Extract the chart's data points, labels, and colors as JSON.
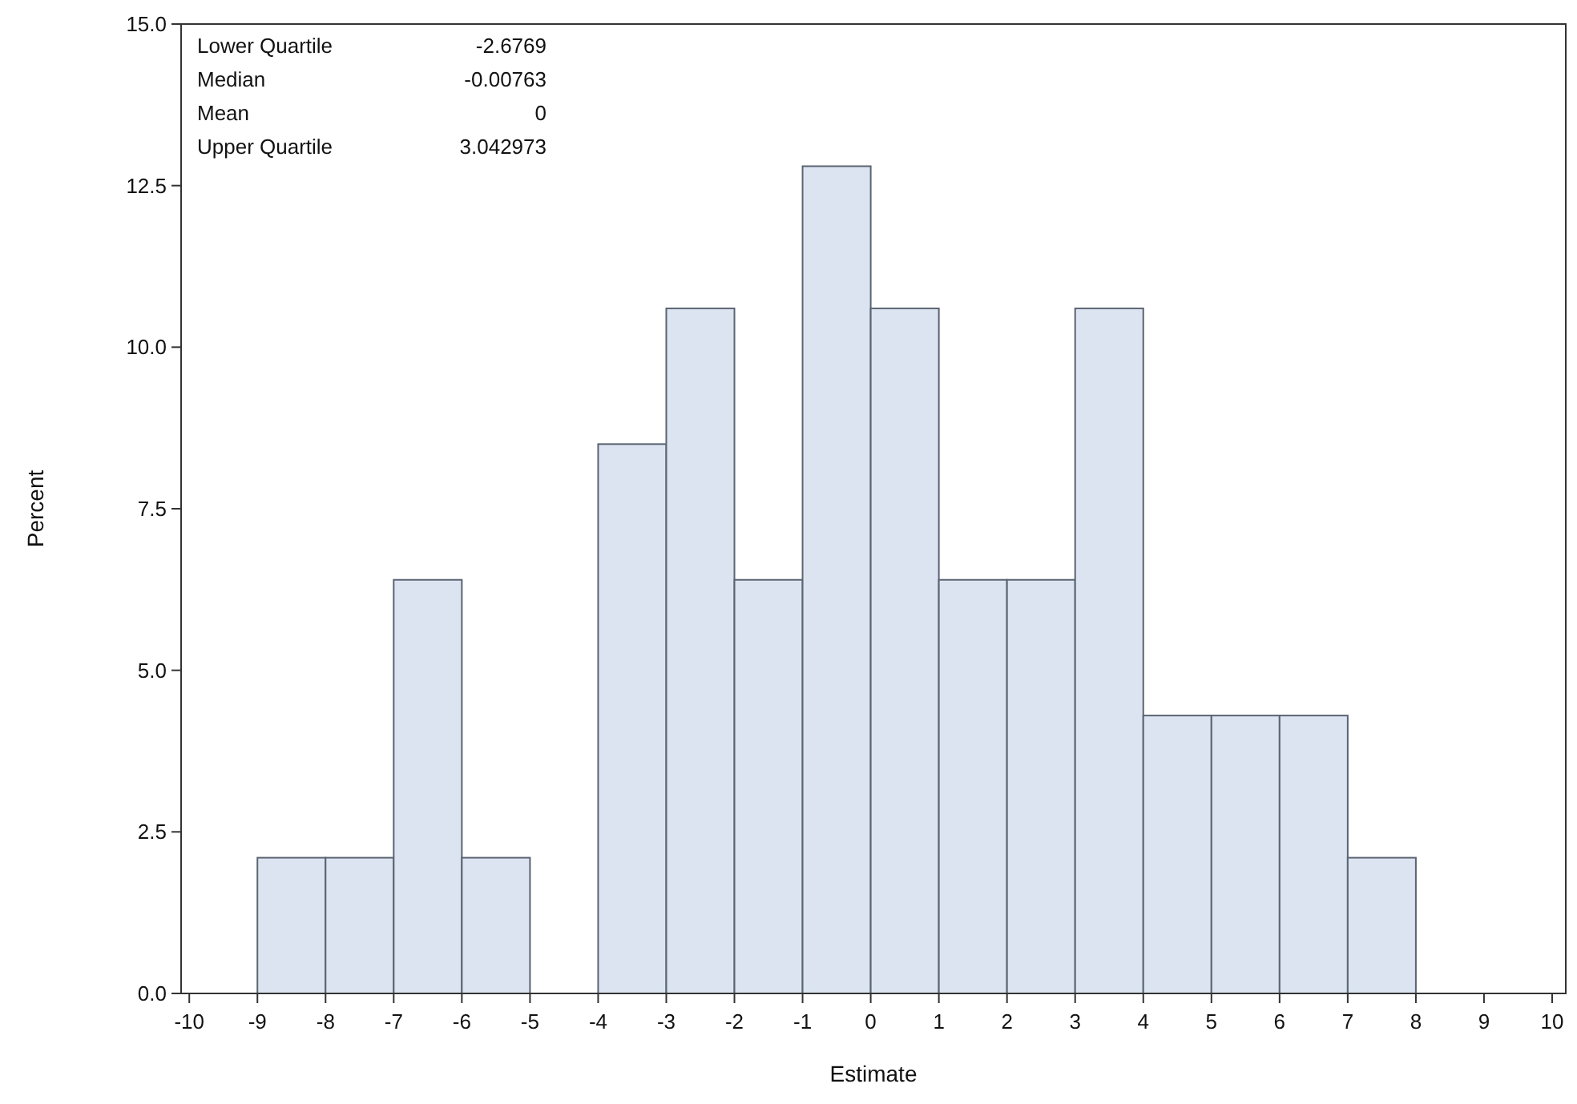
{
  "chart_data": {
    "type": "histogram",
    "xlabel": "Estimate",
    "ylabel": "Percent",
    "bins": [
      -9,
      -8,
      -7,
      -6,
      -5,
      -4,
      -3,
      -2,
      -1,
      0,
      1,
      2,
      3,
      4,
      5,
      6,
      7,
      8
    ],
    "values": [
      2.1,
      2.1,
      6.4,
      2.1,
      0,
      8.5,
      10.6,
      6.4,
      12.8,
      10.6,
      6.4,
      6.4,
      10.6,
      4.3,
      4.3,
      4.3,
      2.1
    ],
    "color": "#dbe4f0",
    "xlim": [
      -10.12,
      10.2
    ],
    "xticks": [
      -10,
      -9,
      -8,
      -7,
      -6,
      -5,
      -4,
      -3,
      -2,
      -1,
      0,
      1,
      2,
      3,
      4,
      5,
      6,
      7,
      8,
      9,
      10
    ],
    "ylim": [
      0,
      15
    ],
    "yticks": [
      {
        "value": 0,
        "label": "0.0"
      },
      {
        "value": 2.5,
        "label": "2.5"
      },
      {
        "value": 5,
        "label": "5.0"
      },
      {
        "value": 7.5,
        "label": "7.5"
      },
      {
        "value": 10,
        "label": "10.0"
      },
      {
        "value": 12.5,
        "label": "12.5"
      },
      {
        "value": 15,
        "label": "15.0"
      }
    ],
    "grid": false,
    "annotations": [
      "Lower Quartile",
      "-2.6769",
      "Median",
      "-0.00763",
      "Mean",
      "0",
      "Upper Quartile",
      "3.042973"
    ]
  }
}
